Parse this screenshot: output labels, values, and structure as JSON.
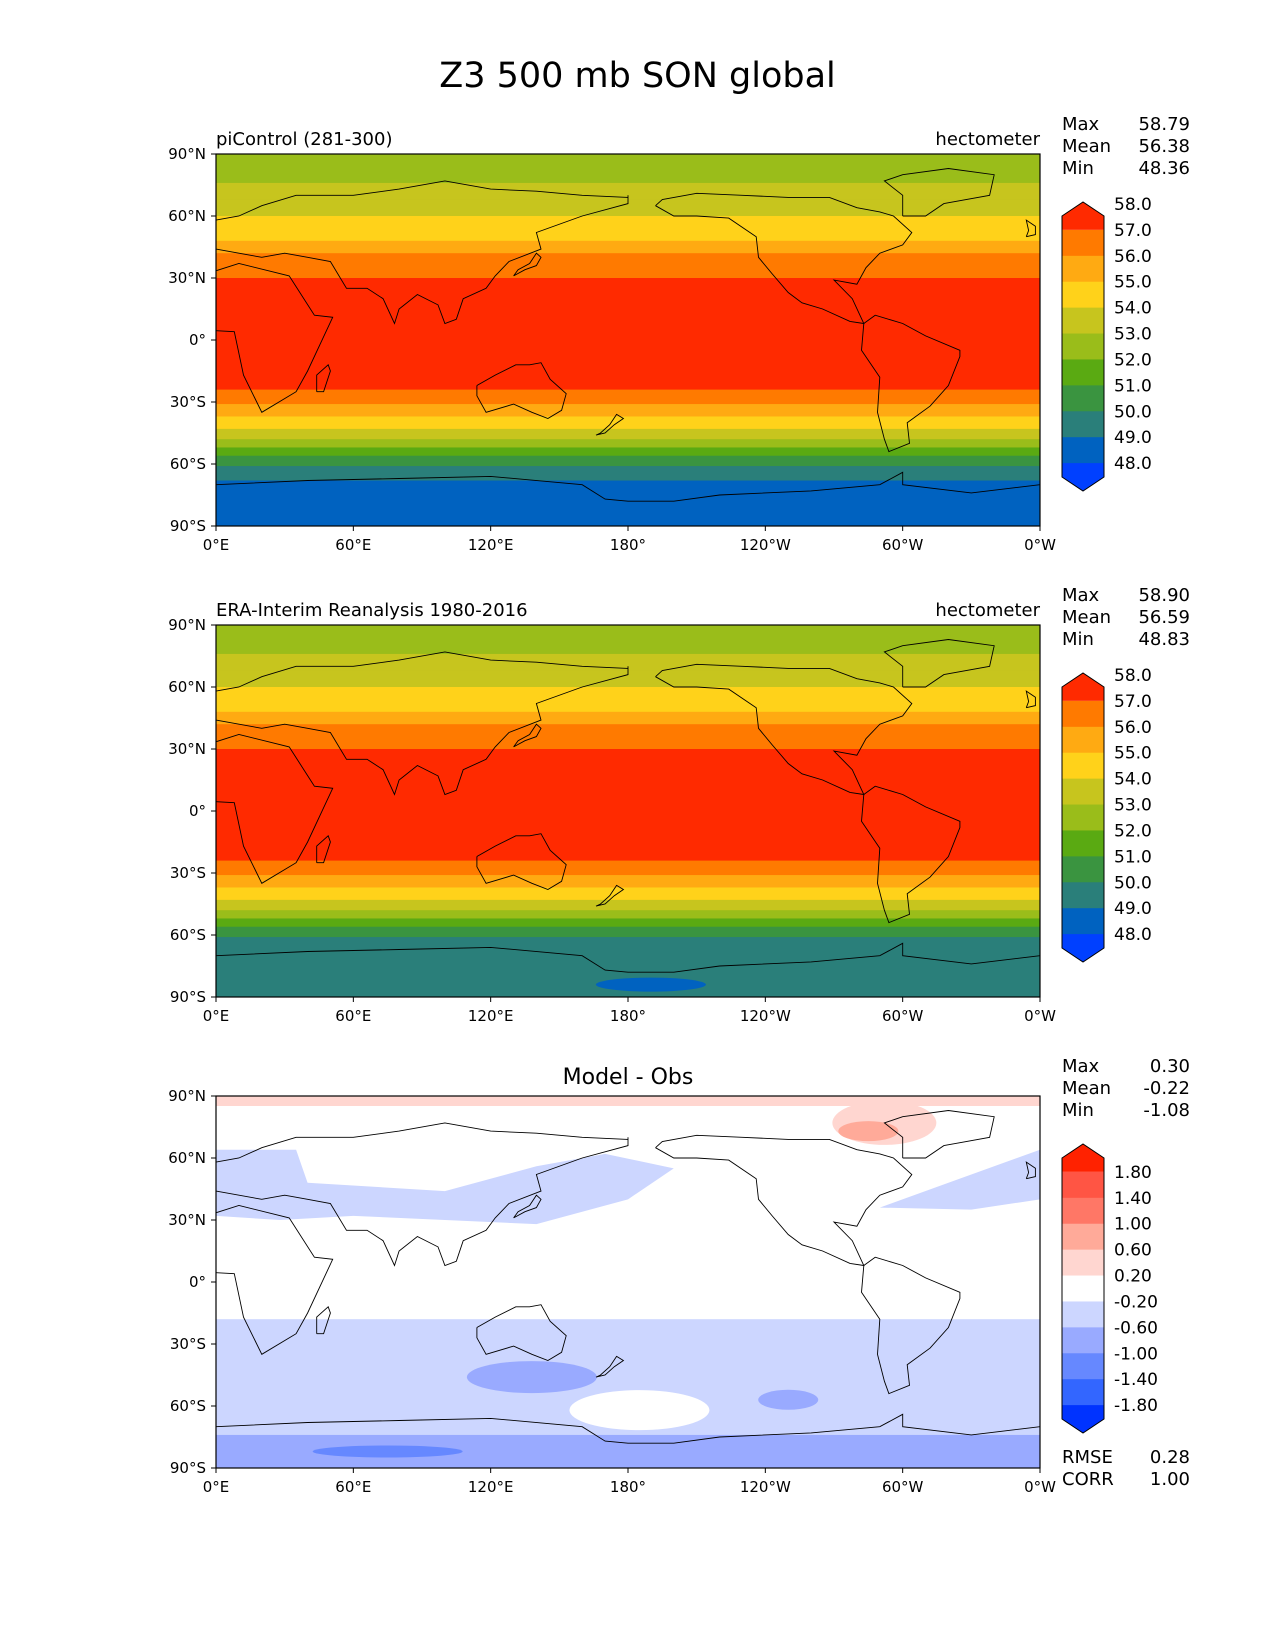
{
  "figure": {
    "title": "Z3 500 mb SON global"
  },
  "colors": {
    "ocean_land_line": "#000000",
    "diff_scale": [
      "#0033ff",
      "#3366ff",
      "#6688ff",
      "#99aaff",
      "#ccd6ff",
      "#ffffff",
      "#ffd6d0",
      "#ffaa99",
      "#ff7766",
      "#ff5544",
      "#ff2200"
    ],
    "field_scale": [
      "#0040ff",
      "#0062c0",
      "#2a7f7a",
      "#3a9440",
      "#5aaa12",
      "#9abd1a",
      "#c7c51e",
      "#ffd21a",
      "#ffaa12",
      "#ff7a00",
      "#ff2a00"
    ]
  },
  "chart_data": [
    {
      "type": "heatmap",
      "left_title": "piControl (281-300)",
      "right_title": "hectometer",
      "center_title": "",
      "stats": [
        {
          "label": "Max",
          "value": "58.79"
        },
        {
          "label": "Mean",
          "value": "56.38"
        },
        {
          "label": "Min",
          "value": "48.36"
        }
      ],
      "extra_stats": [],
      "colorbar_levels": [
        "48.0",
        "49.0",
        "50.0",
        "51.0",
        "52.0",
        "53.0",
        "54.0",
        "55.0",
        "56.0",
        "57.0",
        "58.0"
      ],
      "lat_ticks": [
        "90°N",
        "60°N",
        "30°N",
        "0°",
        "30°S",
        "60°S",
        "90°S"
      ],
      "lon_ticks": [
        "0°E",
        "60°E",
        "120°E",
        "180°",
        "120°W",
        "60°W",
        "0°W"
      ],
      "xlim": [
        0,
        360
      ],
      "ylim": [
        -90,
        90
      ],
      "field": "control"
    },
    {
      "type": "heatmap",
      "left_title": "ERA-Interim Reanalysis 1980-2016",
      "right_title": "hectometer",
      "center_title": "",
      "stats": [
        {
          "label": "Max",
          "value": "58.90"
        },
        {
          "label": "Mean",
          "value": "56.59"
        },
        {
          "label": "Min",
          "value": "48.83"
        }
      ],
      "extra_stats": [],
      "colorbar_levels": [
        "48.0",
        "49.0",
        "50.0",
        "51.0",
        "52.0",
        "53.0",
        "54.0",
        "55.0",
        "56.0",
        "57.0",
        "58.0"
      ],
      "lat_ticks": [
        "90°N",
        "60°N",
        "30°N",
        "0°",
        "30°S",
        "60°S",
        "90°S"
      ],
      "lon_ticks": [
        "0°E",
        "60°E",
        "120°E",
        "180°",
        "120°W",
        "60°W",
        "0°W"
      ],
      "xlim": [
        0,
        360
      ],
      "ylim": [
        -90,
        90
      ],
      "field": "obs"
    },
    {
      "type": "heatmap",
      "left_title": "",
      "right_title": "",
      "center_title": "Model - Obs",
      "stats": [
        {
          "label": "Max",
          "value": "0.30"
        },
        {
          "label": "Mean",
          "value": "-0.22"
        },
        {
          "label": "Min",
          "value": "-1.08"
        }
      ],
      "extra_stats": [
        {
          "label": "RMSE",
          "value": "0.28"
        },
        {
          "label": "CORR",
          "value": "1.00"
        }
      ],
      "colorbar_levels": [
        "-1.80",
        "-1.40",
        "-1.00",
        "-0.60",
        "-0.20",
        "0.20",
        "0.60",
        "1.00",
        "1.40",
        "1.80"
      ],
      "lat_ticks": [
        "90°N",
        "60°N",
        "30°N",
        "0°",
        "30°S",
        "60°S",
        "90°S"
      ],
      "lon_ticks": [
        "0°E",
        "60°E",
        "120°E",
        "180°",
        "120°W",
        "60°W",
        "0°W"
      ],
      "xlim": [
        0,
        360
      ],
      "ylim": [
        -90,
        90
      ],
      "field": "diff"
    }
  ]
}
